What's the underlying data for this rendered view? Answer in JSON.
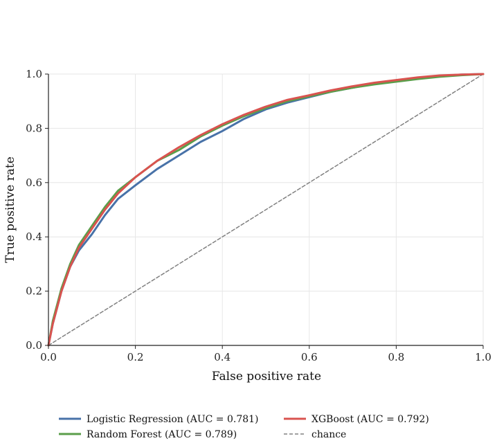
{
  "chart_data": {
    "type": "line",
    "title": "",
    "xlabel": "False positive rate",
    "ylabel": "True positive rate",
    "xlim": [
      0,
      1
    ],
    "ylim": [
      0,
      1
    ],
    "x_ticks": [
      "0.0",
      "0.2",
      "0.4",
      "0.6",
      "0.8",
      "1.0"
    ],
    "y_ticks": [
      "0.0",
      "0.2",
      "0.4",
      "0.6",
      "0.8",
      "1.0"
    ],
    "grid": true,
    "legend_position": "bottom",
    "series": [
      {
        "name": "Logistic Regression (AUC = 0.781)",
        "color": "#4872a8",
        "x": [
          0,
          0.01,
          0.02,
          0.03,
          0.05,
          0.07,
          0.1,
          0.13,
          0.16,
          0.2,
          0.25,
          0.3,
          0.35,
          0.4,
          0.45,
          0.5,
          0.55,
          0.6,
          0.65,
          0.7,
          0.75,
          0.8,
          0.85,
          0.9,
          0.95,
          1.0
        ],
        "y": [
          0,
          0.08,
          0.14,
          0.2,
          0.29,
          0.35,
          0.41,
          0.48,
          0.54,
          0.59,
          0.65,
          0.7,
          0.75,
          0.79,
          0.835,
          0.87,
          0.895,
          0.915,
          0.935,
          0.95,
          0.965,
          0.975,
          0.985,
          0.993,
          0.998,
          1.0
        ]
      },
      {
        "name": "Random Forest (AUC = 0.789)",
        "color": "#5a9e4a",
        "x": [
          0,
          0.01,
          0.02,
          0.03,
          0.05,
          0.07,
          0.1,
          0.13,
          0.16,
          0.2,
          0.25,
          0.3,
          0.35,
          0.4,
          0.45,
          0.5,
          0.55,
          0.6,
          0.65,
          0.7,
          0.75,
          0.8,
          0.85,
          0.9,
          0.95,
          1.0
        ],
        "y": [
          0,
          0.09,
          0.15,
          0.21,
          0.3,
          0.37,
          0.44,
          0.51,
          0.57,
          0.62,
          0.68,
          0.72,
          0.77,
          0.81,
          0.845,
          0.875,
          0.9,
          0.918,
          0.935,
          0.95,
          0.962,
          0.972,
          0.982,
          0.99,
          0.996,
          1.0
        ]
      },
      {
        "name": "XGBoost (AUC = 0.792)",
        "color": "#d9534f",
        "x": [
          0,
          0.01,
          0.02,
          0.03,
          0.05,
          0.07,
          0.1,
          0.13,
          0.16,
          0.2,
          0.25,
          0.3,
          0.35,
          0.4,
          0.45,
          0.5,
          0.55,
          0.6,
          0.65,
          0.7,
          0.75,
          0.8,
          0.85,
          0.9,
          0.95,
          1.0
        ],
        "y": [
          0,
          0.08,
          0.14,
          0.2,
          0.29,
          0.36,
          0.43,
          0.5,
          0.56,
          0.62,
          0.68,
          0.73,
          0.775,
          0.815,
          0.85,
          0.88,
          0.905,
          0.922,
          0.94,
          0.955,
          0.968,
          0.978,
          0.988,
          0.995,
          0.998,
          1.0
        ]
      },
      {
        "name": "chance",
        "color": "#808080",
        "dashed": true,
        "x": [
          0,
          1
        ],
        "y": [
          0,
          1
        ]
      }
    ]
  }
}
